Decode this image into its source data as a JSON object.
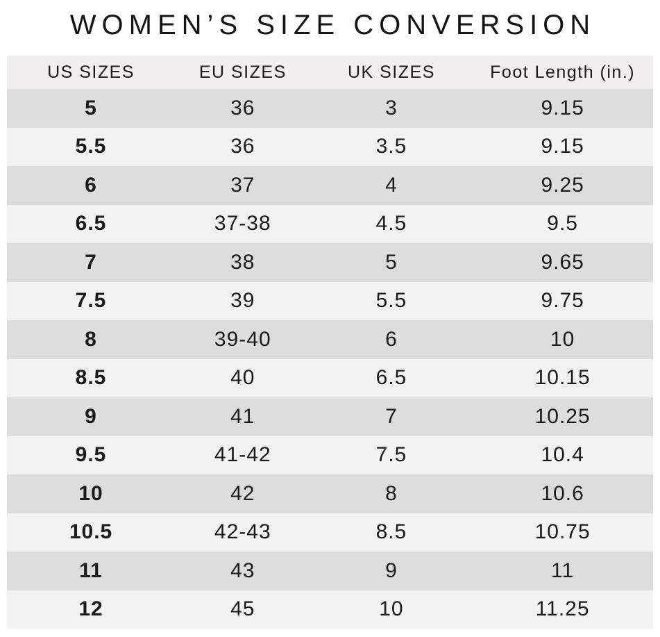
{
  "title": "WOMEN’S SIZE CONVERSION",
  "colors": {
    "page_background": "#ffffff",
    "header_bg": "#f0efee",
    "row_dark": "#dcdddd",
    "row_light": "#f2f2f2",
    "text": "#1b1b1b",
    "title_text": "#141414"
  },
  "table": {
    "headers": [
      "US SIZES",
      "EU SIZES",
      "UK SIZES",
      "Foot Length (in.)"
    ],
    "rows": [
      [
        "5",
        "36",
        "3",
        "9.15"
      ],
      [
        "5.5",
        "36",
        "3.5",
        "9.15"
      ],
      [
        "6",
        "37",
        "4",
        "9.25"
      ],
      [
        "6.5",
        "37-38",
        "4.5",
        "9.5"
      ],
      [
        "7",
        "38",
        "5",
        "9.65"
      ],
      [
        "7.5",
        "39",
        "5.5",
        "9.75"
      ],
      [
        "8",
        "39-40",
        "6",
        "10"
      ],
      [
        "8.5",
        "40",
        "6.5",
        "10.15"
      ],
      [
        "9",
        "41",
        "7",
        "10.25"
      ],
      [
        "9.5",
        "41-42",
        "7.5",
        "10.4"
      ],
      [
        "10",
        "42",
        "8",
        "10.6"
      ],
      [
        "10.5",
        "42-43",
        "8.5",
        "10.75"
      ],
      [
        "11",
        "43",
        "9",
        "11"
      ],
      [
        "12",
        "45",
        "10",
        "11.25"
      ]
    ]
  }
}
